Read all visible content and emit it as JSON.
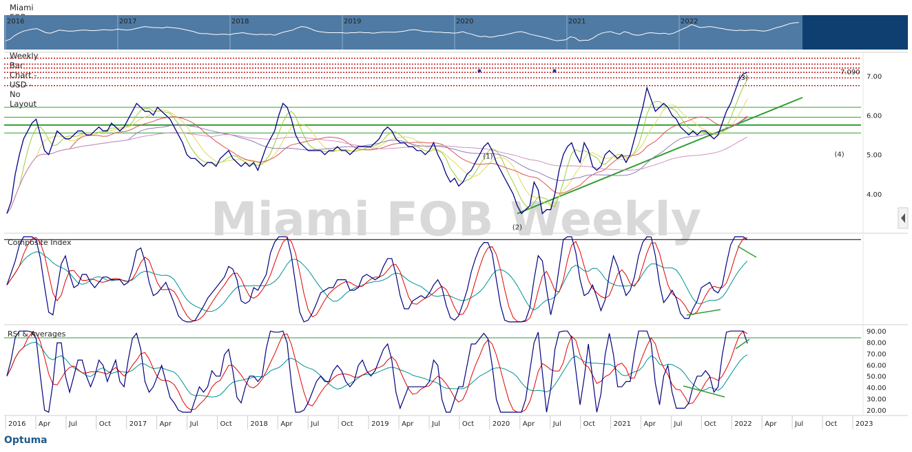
{
  "header": {
    "title": "Miami FOB Weekly (Miami FoB) - Weekly Bar Chart - USD - No Layout"
  },
  "overview": {
    "years": [
      "2016",
      "2017",
      "2018",
      "2019",
      "2020",
      "2021",
      "2022"
    ]
  },
  "watermark": "Miami FOB Weekly",
  "logo": {
    "text": "Optuma"
  },
  "colors": {
    "price": "#000080",
    "trend": "#2e9c2e",
    "resistance": "#c00000",
    "signal": "#e00000",
    "average": "#009090",
    "overview_bg": "#4f7aa3"
  },
  "chart_data": [
    {
      "type": "line",
      "panel": "price",
      "yticks": [
        "4.00",
        "5.00",
        "6.00",
        "7.00"
      ],
      "ylim": [
        3.0,
        7.6
      ],
      "last_value_label": "7.090",
      "resistance_levels": [
        7.45,
        7.3,
        7.2,
        7.09,
        6.95,
        6.75
      ],
      "support_levels": [
        6.2,
        5.95,
        5.75,
        5.55
      ],
      "wave_labels": [
        "(1)",
        "(2)",
        "(3)",
        "(4)"
      ],
      "series": [
        {
          "values": [
            3.5,
            3.8,
            4.5,
            5.0,
            5.4,
            5.6,
            5.8,
            5.9,
            5.5,
            5.1,
            5.0,
            5.3,
            5.6,
            5.5,
            5.4,
            5.4,
            5.5,
            5.6,
            5.6,
            5.5,
            5.5,
            5.6,
            5.7,
            5.6,
            5.6,
            5.8,
            5.7,
            5.6,
            5.7,
            5.9,
            6.1,
            6.3,
            6.2,
            6.1,
            6.1,
            6.0,
            6.2,
            6.1,
            6.0,
            5.9,
            5.7,
            5.5,
            5.3,
            5.0,
            4.9,
            4.9,
            4.8,
            4.7,
            4.8,
            4.8,
            4.7,
            4.9,
            5.0,
            5.1,
            4.9,
            4.8,
            4.7,
            4.8,
            4.7,
            4.8,
            4.6,
            4.9,
            5.2,
            5.4,
            5.6,
            6.0,
            6.3,
            6.2,
            5.9,
            5.5,
            5.3,
            5.2,
            5.1,
            5.1,
            5.1,
            5.1,
            5.0,
            5.1,
            5.1,
            5.2,
            5.1,
            5.1,
            5.0,
            5.1,
            5.2,
            5.2,
            5.2,
            5.2,
            5.3,
            5.4,
            5.6,
            5.7,
            5.6,
            5.4,
            5.3,
            5.3,
            5.2,
            5.2,
            5.1,
            5.1,
            5.0,
            5.1,
            5.3,
            5.0,
            4.8,
            4.5,
            4.3,
            4.4,
            4.2,
            4.3,
            4.5,
            4.6,
            4.8,
            5.0,
            5.2,
            5.3,
            5.1,
            4.8,
            4.6,
            4.4,
            4.2,
            4.0,
            3.7,
            3.5,
            3.6,
            3.7,
            4.3,
            4.1,
            3.5,
            3.6,
            3.6,
            4.0,
            4.6,
            5.0,
            5.2,
            5.3,
            5.0,
            4.8,
            5.3,
            5.1,
            4.7,
            4.6,
            4.7,
            5.0,
            5.1,
            5.0,
            4.9,
            5.0,
            4.8,
            5.0,
            5.4,
            5.8,
            6.2,
            6.7,
            6.4,
            6.1,
            6.2,
            6.3,
            6.2,
            6.0,
            5.9,
            5.7,
            5.6,
            5.5,
            5.6,
            5.5,
            5.6,
            5.6,
            5.5,
            5.4,
            5.5,
            5.8,
            6.1,
            6.3,
            6.6,
            6.9,
            7.05,
            7.09
          ]
        }
      ],
      "moving_averages": [
        "green",
        "yellow",
        "red",
        "purple",
        "pink"
      ]
    },
    {
      "type": "line",
      "panel": "Composite Index",
      "title": "Composite Index",
      "ylim": [
        -60,
        100
      ]
    },
    {
      "type": "line",
      "panel": "RSI & Averages",
      "title": "RSI & Averages",
      "yticks": [
        "20.00",
        "30.00",
        "40.00",
        "50.00",
        "60.00",
        "70.00",
        "80.00",
        "90.00"
      ],
      "ylim": [
        15,
        95
      ],
      "overbought": 84
    }
  ],
  "xaxis": {
    "labels": [
      "2016",
      "Apr",
      "Jul",
      "Oct",
      "2017",
      "Apr",
      "Jul",
      "Oct",
      "2018",
      "Apr",
      "Jul",
      "Oct",
      "2019",
      "Apr",
      "Jul",
      "Oct",
      "2020",
      "Apr",
      "Jul",
      "Oct",
      "2021",
      "Apr",
      "Jul",
      "Oct",
      "2022",
      "Apr",
      "Jul",
      "Oct",
      "2023"
    ]
  }
}
